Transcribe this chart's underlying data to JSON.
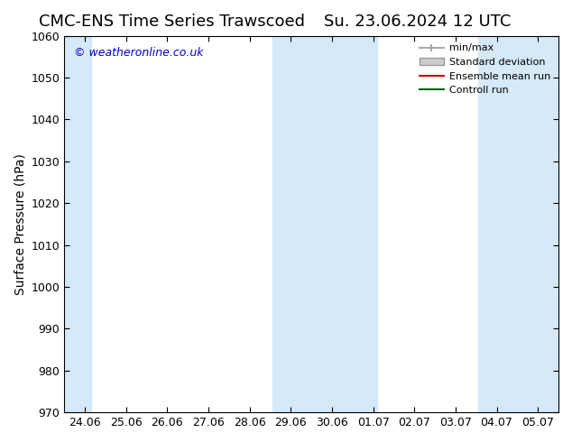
{
  "title": "CMC-ENS Time Series Trawscoed",
  "title_right": "Su. 23.06.2024 12 UTC",
  "ylabel": "Surface Pressure (hPa)",
  "ylim": [
    970,
    1060
  ],
  "yticks": [
    970,
    980,
    990,
    1000,
    1010,
    1020,
    1030,
    1040,
    1050,
    1060
  ],
  "xtick_labels": [
    "24.06",
    "25.06",
    "26.06",
    "27.06",
    "28.06",
    "29.06",
    "30.06",
    "01.07",
    "02.07",
    "03.07",
    "04.07",
    "05.07"
  ],
  "xtick_positions": [
    0,
    1,
    2,
    3,
    4,
    5,
    6,
    7,
    8,
    9,
    10,
    11
  ],
  "shade_color": "#d6e9f8",
  "watermark_text": "© weatheronline.co.uk",
  "watermark_color": "#0000cc",
  "legend_items": [
    {
      "label": "min/max",
      "color": "#aaaaaa",
      "lw": 1
    },
    {
      "label": "Standard deviation",
      "color": "#cccccc",
      "lw": 6
    },
    {
      "label": "Ensemble mean run",
      "color": "#cc0000",
      "lw": 1
    },
    {
      "label": "Controll run",
      "color": "#006600",
      "lw": 1
    }
  ],
  "bg_color": "#ffffff",
  "plot_bg_color": "#ffffff",
  "title_fontsize": 13,
  "label_fontsize": 10,
  "tick_fontsize": 9
}
